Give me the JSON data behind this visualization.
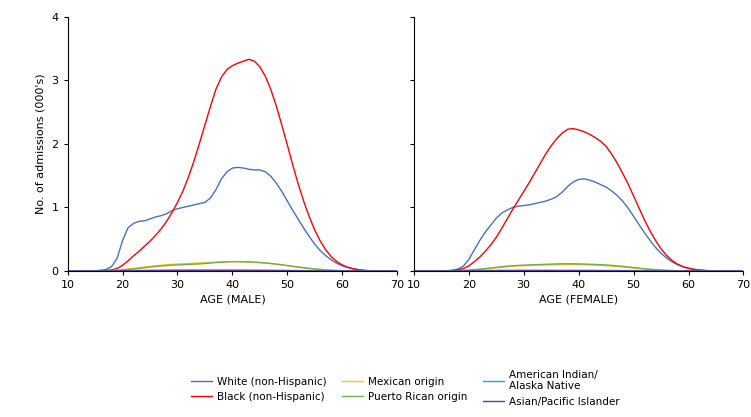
{
  "colors": {
    "white": "#4472C4",
    "black": "#FF0000",
    "mexican": "#FFC000",
    "puerto_rican": "#70AD47",
    "american_indian": "#00B0F0",
    "asian": "#7030A0"
  },
  "xlim": [
    10,
    70
  ],
  "ylim": [
    0,
    4
  ],
  "yticks": [
    0,
    1,
    2,
    3,
    4
  ],
  "xticks": [
    10,
    20,
    30,
    40,
    50,
    60,
    70
  ],
  "ylabel": "No. of admissions (000's)",
  "xlabel_male": "AGE (MALE)",
  "xlabel_female": "AGE (FEMALE)",
  "legend_labels": {
    "white": "White (non-Hispanic)",
    "black": "Black (non-Hispanic)",
    "mexican": "Mexican origin",
    "puerto_rican": "Puerto Rican origin",
    "american_indian": "American Indian/\nAlaska Native",
    "asian": "Asian/Pacific Islander"
  },
  "male": {
    "ages": [
      10,
      11,
      12,
      13,
      14,
      15,
      16,
      17,
      18,
      19,
      20,
      21,
      22,
      23,
      24,
      25,
      26,
      27,
      28,
      29,
      30,
      31,
      32,
      33,
      34,
      35,
      36,
      37,
      38,
      39,
      40,
      41,
      42,
      43,
      44,
      45,
      46,
      47,
      48,
      49,
      50,
      51,
      52,
      53,
      54,
      55,
      56,
      57,
      58,
      59,
      60,
      61,
      62,
      63,
      64,
      65,
      66,
      67,
      68,
      69,
      70
    ],
    "white": [
      0.0,
      0.0,
      0.0,
      0.0,
      0.002,
      0.005,
      0.012,
      0.025,
      0.07,
      0.2,
      0.48,
      0.68,
      0.75,
      0.78,
      0.79,
      0.82,
      0.85,
      0.87,
      0.9,
      0.95,
      0.98,
      1.0,
      1.02,
      1.04,
      1.06,
      1.08,
      1.15,
      1.28,
      1.45,
      1.56,
      1.62,
      1.63,
      1.62,
      1.6,
      1.59,
      1.59,
      1.56,
      1.49,
      1.38,
      1.25,
      1.1,
      0.95,
      0.81,
      0.67,
      0.54,
      0.42,
      0.32,
      0.24,
      0.175,
      0.12,
      0.082,
      0.055,
      0.035,
      0.02,
      0.01,
      0.005,
      0.002,
      0.001,
      0.0,
      0.0,
      0.0
    ],
    "black": [
      0.0,
      0.0,
      0.0,
      0.0,
      0.001,
      0.002,
      0.004,
      0.008,
      0.018,
      0.04,
      0.09,
      0.16,
      0.24,
      0.31,
      0.39,
      0.47,
      0.56,
      0.66,
      0.78,
      0.92,
      1.08,
      1.26,
      1.48,
      1.73,
      2.01,
      2.3,
      2.59,
      2.86,
      3.05,
      3.17,
      3.23,
      3.27,
      3.3,
      3.33,
      3.3,
      3.21,
      3.06,
      2.85,
      2.59,
      2.29,
      1.98,
      1.66,
      1.36,
      1.09,
      0.85,
      0.64,
      0.47,
      0.33,
      0.225,
      0.148,
      0.095,
      0.06,
      0.035,
      0.02,
      0.01,
      0.005,
      0.002,
      0.001,
      0.0,
      0.0,
      0.0
    ],
    "mexican": [
      0.0,
      0.0,
      0.0,
      0.0,
      0.001,
      0.001,
      0.002,
      0.004,
      0.008,
      0.014,
      0.022,
      0.032,
      0.042,
      0.052,
      0.062,
      0.072,
      0.082,
      0.09,
      0.098,
      0.104,
      0.11,
      0.115,
      0.118,
      0.122,
      0.126,
      0.13,
      0.134,
      0.138,
      0.142,
      0.145,
      0.147,
      0.147,
      0.145,
      0.142,
      0.138,
      0.133,
      0.126,
      0.118,
      0.108,
      0.097,
      0.085,
      0.073,
      0.062,
      0.052,
      0.042,
      0.033,
      0.026,
      0.019,
      0.014,
      0.01,
      0.007,
      0.005,
      0.003,
      0.002,
      0.001,
      0.0,
      0.0,
      0.0,
      0.0,
      0.0,
      0.0
    ],
    "puerto_rican": [
      0.0,
      0.0,
      0.0,
      0.0,
      0.001,
      0.001,
      0.002,
      0.003,
      0.005,
      0.009,
      0.016,
      0.024,
      0.033,
      0.042,
      0.052,
      0.062,
      0.072,
      0.08,
      0.087,
      0.092,
      0.096,
      0.1,
      0.104,
      0.108,
      0.112,
      0.118,
      0.126,
      0.134,
      0.14,
      0.145,
      0.148,
      0.148,
      0.146,
      0.143,
      0.139,
      0.134,
      0.127,
      0.119,
      0.109,
      0.098,
      0.086,
      0.074,
      0.062,
      0.051,
      0.041,
      0.032,
      0.024,
      0.017,
      0.012,
      0.008,
      0.005,
      0.003,
      0.002,
      0.001,
      0.001,
      0.0,
      0.0,
      0.0,
      0.0,
      0.0,
      0.0
    ],
    "american_indian": [
      0.0,
      0.0,
      0.0,
      0.0,
      0.0,
      0.001,
      0.001,
      0.002,
      0.003,
      0.004,
      0.006,
      0.008,
      0.009,
      0.01,
      0.011,
      0.012,
      0.013,
      0.014,
      0.015,
      0.015,
      0.016,
      0.016,
      0.017,
      0.017,
      0.017,
      0.017,
      0.017,
      0.017,
      0.017,
      0.017,
      0.017,
      0.017,
      0.017,
      0.016,
      0.016,
      0.015,
      0.015,
      0.014,
      0.013,
      0.012,
      0.011,
      0.009,
      0.008,
      0.007,
      0.006,
      0.005,
      0.004,
      0.003,
      0.002,
      0.002,
      0.001,
      0.001,
      0.0,
      0.0,
      0.0,
      0.0,
      0.0,
      0.0,
      0.0,
      0.0,
      0.0
    ],
    "asian": [
      0.0,
      0.0,
      0.0,
      0.0,
      0.0,
      0.0,
      0.0,
      0.001,
      0.001,
      0.002,
      0.003,
      0.004,
      0.004,
      0.005,
      0.005,
      0.006,
      0.006,
      0.006,
      0.006,
      0.007,
      0.007,
      0.007,
      0.007,
      0.007,
      0.007,
      0.007,
      0.007,
      0.007,
      0.007,
      0.007,
      0.007,
      0.006,
      0.006,
      0.006,
      0.006,
      0.005,
      0.005,
      0.005,
      0.004,
      0.004,
      0.003,
      0.003,
      0.002,
      0.002,
      0.002,
      0.001,
      0.001,
      0.001,
      0.001,
      0.0,
      0.0,
      0.0,
      0.0,
      0.0,
      0.0,
      0.0,
      0.0,
      0.0,
      0.0,
      0.0,
      0.0
    ]
  },
  "female": {
    "ages": [
      10,
      11,
      12,
      13,
      14,
      15,
      16,
      17,
      18,
      19,
      20,
      21,
      22,
      23,
      24,
      25,
      26,
      27,
      28,
      29,
      30,
      31,
      32,
      33,
      34,
      35,
      36,
      37,
      38,
      39,
      40,
      41,
      42,
      43,
      44,
      45,
      46,
      47,
      48,
      49,
      50,
      51,
      52,
      53,
      54,
      55,
      56,
      57,
      58,
      59,
      60,
      61,
      62,
      63,
      64,
      65,
      66,
      67,
      68,
      69,
      70
    ],
    "white": [
      0.0,
      0.0,
      0.0,
      0.0,
      0.001,
      0.003,
      0.006,
      0.012,
      0.03,
      0.075,
      0.18,
      0.33,
      0.48,
      0.61,
      0.72,
      0.83,
      0.91,
      0.96,
      1.0,
      1.02,
      1.03,
      1.04,
      1.06,
      1.08,
      1.1,
      1.13,
      1.17,
      1.24,
      1.33,
      1.4,
      1.44,
      1.45,
      1.43,
      1.4,
      1.36,
      1.32,
      1.26,
      1.19,
      1.1,
      0.99,
      0.86,
      0.73,
      0.6,
      0.48,
      0.37,
      0.28,
      0.205,
      0.145,
      0.1,
      0.068,
      0.045,
      0.028,
      0.017,
      0.009,
      0.005,
      0.002,
      0.001,
      0.0,
      0.0,
      0.0,
      0.0
    ],
    "black": [
      0.0,
      0.0,
      0.0,
      0.0,
      0.001,
      0.002,
      0.004,
      0.008,
      0.018,
      0.038,
      0.08,
      0.145,
      0.22,
      0.31,
      0.41,
      0.53,
      0.67,
      0.82,
      0.97,
      1.11,
      1.25,
      1.39,
      1.54,
      1.69,
      1.84,
      1.97,
      2.08,
      2.17,
      2.23,
      2.24,
      2.22,
      2.19,
      2.15,
      2.1,
      2.04,
      1.96,
      1.84,
      1.7,
      1.54,
      1.37,
      1.18,
      0.99,
      0.8,
      0.63,
      0.48,
      0.35,
      0.245,
      0.165,
      0.108,
      0.068,
      0.042,
      0.025,
      0.014,
      0.008,
      0.004,
      0.002,
      0.001,
      0.0,
      0.0,
      0.0,
      0.0
    ],
    "mexican": [
      0.0,
      0.0,
      0.0,
      0.0,
      0.001,
      0.001,
      0.002,
      0.003,
      0.005,
      0.008,
      0.013,
      0.019,
      0.026,
      0.034,
      0.042,
      0.052,
      0.062,
      0.07,
      0.077,
      0.082,
      0.086,
      0.089,
      0.092,
      0.094,
      0.096,
      0.098,
      0.1,
      0.101,
      0.102,
      0.102,
      0.101,
      0.099,
      0.097,
      0.094,
      0.09,
      0.085,
      0.079,
      0.072,
      0.064,
      0.056,
      0.047,
      0.039,
      0.031,
      0.025,
      0.019,
      0.014,
      0.01,
      0.007,
      0.005,
      0.003,
      0.002,
      0.001,
      0.001,
      0.0,
      0.0,
      0.0,
      0.0,
      0.0,
      0.0,
      0.0,
      0.0
    ],
    "puerto_rican": [
      0.0,
      0.0,
      0.0,
      0.0,
      0.001,
      0.001,
      0.002,
      0.003,
      0.005,
      0.008,
      0.014,
      0.021,
      0.029,
      0.038,
      0.048,
      0.058,
      0.068,
      0.076,
      0.083,
      0.088,
      0.092,
      0.096,
      0.1,
      0.103,
      0.106,
      0.109,
      0.112,
      0.114,
      0.115,
      0.114,
      0.112,
      0.11,
      0.107,
      0.104,
      0.1,
      0.095,
      0.089,
      0.082,
      0.074,
      0.065,
      0.055,
      0.045,
      0.036,
      0.028,
      0.022,
      0.016,
      0.012,
      0.008,
      0.005,
      0.004,
      0.002,
      0.001,
      0.001,
      0.0,
      0.0,
      0.0,
      0.0,
      0.0,
      0.0,
      0.0,
      0.0
    ],
    "american_indian": [
      0.0,
      0.0,
      0.0,
      0.0,
      0.0,
      0.001,
      0.001,
      0.002,
      0.002,
      0.003,
      0.005,
      0.007,
      0.008,
      0.009,
      0.01,
      0.011,
      0.012,
      0.012,
      0.013,
      0.013,
      0.013,
      0.013,
      0.013,
      0.013,
      0.013,
      0.013,
      0.012,
      0.012,
      0.012,
      0.012,
      0.011,
      0.011,
      0.011,
      0.01,
      0.01,
      0.009,
      0.009,
      0.008,
      0.007,
      0.007,
      0.006,
      0.005,
      0.004,
      0.003,
      0.003,
      0.002,
      0.001,
      0.001,
      0.001,
      0.0,
      0.0,
      0.0,
      0.0,
      0.0,
      0.0,
      0.0,
      0.0,
      0.0,
      0.0,
      0.0,
      0.0
    ],
    "asian": [
      0.0,
      0.0,
      0.0,
      0.0,
      0.0,
      0.0,
      0.0,
      0.0,
      0.001,
      0.001,
      0.002,
      0.002,
      0.003,
      0.003,
      0.004,
      0.004,
      0.004,
      0.004,
      0.004,
      0.005,
      0.005,
      0.005,
      0.005,
      0.005,
      0.005,
      0.005,
      0.005,
      0.004,
      0.004,
      0.004,
      0.004,
      0.004,
      0.004,
      0.003,
      0.003,
      0.003,
      0.003,
      0.002,
      0.002,
      0.002,
      0.001,
      0.001,
      0.001,
      0.001,
      0.001,
      0.0,
      0.0,
      0.0,
      0.0,
      0.0,
      0.0,
      0.0,
      0.0,
      0.0,
      0.0,
      0.0,
      0.0,
      0.0,
      0.0,
      0.0,
      0.0
    ]
  }
}
